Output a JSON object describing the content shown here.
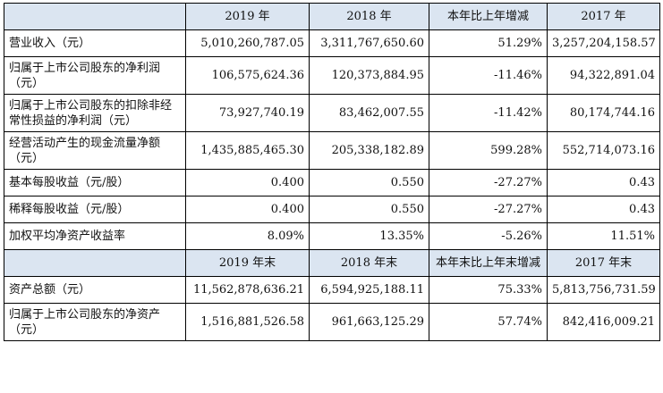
{
  "header1": [
    "",
    "2019 年",
    "2018 年",
    "本年比上年增减",
    "2017 年"
  ],
  "header2": [
    "",
    "2019 年末",
    "2018 年末",
    "本年末比上年末增减",
    "2017 年末"
  ],
  "rows1": [
    {
      "label": "营业收入（元）",
      "values": [
        "5,010,260,787.05",
        "3,311,767,650.60",
        "51.29%",
        "3,257,204,158.57"
      ],
      "h": 1
    },
    {
      "label": "归属于上市公司股东的净利润（元）",
      "values": [
        "106,575,624.36",
        "120,373,884.95",
        "-11.46%",
        "94,322,891.04"
      ],
      "h": 2
    },
    {
      "label": "归属于上市公司股东的扣除非经常性损益的净利润（元）",
      "values": [
        "73,927,740.19",
        "83,462,007.55",
        "-11.42%",
        "80,174,744.16"
      ],
      "h": 2
    },
    {
      "label": "经营活动产生的现金流量净额（元）",
      "values": [
        "1,435,885,465.30",
        "205,338,182.89",
        "599.28%",
        "552,714,073.16"
      ],
      "h": 2
    },
    {
      "label": "基本每股收益（元/股）",
      "values": [
        "0.400",
        "0.550",
        "-27.27%",
        "0.43"
      ],
      "h": 1
    },
    {
      "label": "稀释每股收益（元/股）",
      "values": [
        "0.400",
        "0.550",
        "-27.27%",
        "0.43"
      ],
      "h": 1
    },
    {
      "label": "加权平均净资产收益率",
      "values": [
        "8.09%",
        "13.35%",
        "-5.26%",
        "11.51%"
      ],
      "h": 1
    }
  ],
  "rows2": [
    {
      "label": "资产总额（元）",
      "values": [
        "11,562,878,636.21",
        "6,594,925,188.11",
        "75.33%",
        "5,813,756,731.59"
      ],
      "h": 1
    },
    {
      "label": "归属于上市公司股东的净资产（元）",
      "values": [
        "1,516,881,526.58",
        "961,663,125.29",
        "57.74%",
        "842,416,009.21"
      ],
      "h": 2
    }
  ]
}
